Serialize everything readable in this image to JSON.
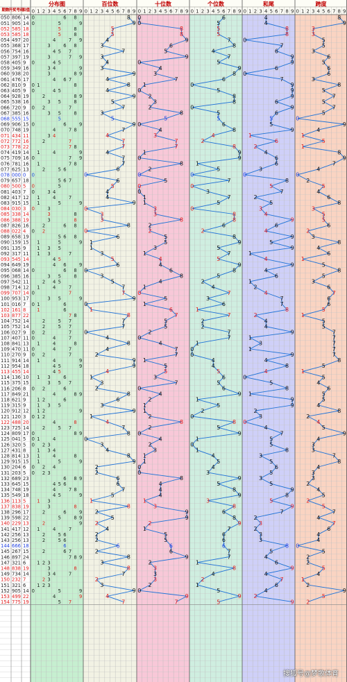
{
  "chart_data": {
    "type": "table",
    "title": "",
    "columns": {
      "issue": "期数",
      "draw": "开奖号码",
      "sum": "和值",
      "groups": [
        {
          "label": "分布图",
          "color": "#c6efd0"
        },
        {
          "label": "百位数",
          "color": "#f2f2e4"
        },
        {
          "label": "十位数",
          "color": "#f8c8d8"
        },
        {
          "label": "个位数",
          "color": "#cfeee0"
        },
        {
          "label": "和尾",
          "color": "#cfd0f8"
        },
        {
          "label": "跨度",
          "color": "#fad4c2"
        }
      ],
      "digits": [
        "0",
        "1",
        "2",
        "3",
        "4",
        "5",
        "6",
        "7",
        "8",
        "9"
      ]
    },
    "series_color": "#1e72d8",
    "rows": [
      {
        "issue": "050",
        "draw": "806",
        "sum": "14"
      },
      {
        "issue": "051",
        "draw": "905",
        "sum": "14"
      },
      {
        "issue": "052",
        "draw": "585",
        "sum": "18"
      },
      {
        "issue": "053",
        "draw": "585",
        "sum": "18"
      },
      {
        "issue": "054",
        "draw": "497",
        "sum": "20"
      },
      {
        "issue": "055",
        "draw": "368",
        "sum": "17"
      },
      {
        "issue": "056",
        "draw": "754",
        "sum": "16"
      },
      {
        "issue": "057",
        "draw": "397",
        "sum": "19"
      },
      {
        "issue": "058",
        "draw": "405",
        "sum": "9"
      },
      {
        "issue": "059",
        "draw": "349",
        "sum": "16"
      },
      {
        "issue": "060",
        "draw": "938",
        "sum": "20"
      },
      {
        "issue": "061",
        "draw": "476",
        "sum": "17"
      },
      {
        "issue": "062",
        "draw": "810",
        "sum": "9"
      },
      {
        "issue": "063",
        "draw": "405",
        "sum": "9"
      },
      {
        "issue": "064",
        "draw": "928",
        "sum": "19"
      },
      {
        "issue": "065",
        "draw": "538",
        "sum": "16"
      },
      {
        "issue": "066",
        "draw": "720",
        "sum": "9"
      },
      {
        "issue": "067",
        "draw": "385",
        "sum": "16"
      },
      {
        "issue": "068",
        "draw": "555",
        "sum": "15"
      },
      {
        "issue": "069",
        "draw": "906",
        "sum": "15"
      },
      {
        "issue": "070",
        "draw": "748",
        "sum": "19"
      },
      {
        "issue": "071",
        "draw": "434",
        "sum": "11"
      },
      {
        "issue": "072",
        "draw": "772",
        "sum": "16"
      },
      {
        "issue": "073",
        "draw": "778",
        "sum": "22"
      },
      {
        "issue": "074",
        "draw": "419",
        "sum": "14"
      },
      {
        "issue": "075",
        "draw": "709",
        "sum": "16"
      },
      {
        "issue": "076",
        "draw": "781",
        "sum": "16"
      },
      {
        "issue": "077",
        "draw": "625",
        "sum": "13"
      },
      {
        "issue": "078",
        "draw": "000",
        "sum": "0"
      },
      {
        "issue": "079",
        "draw": "657",
        "sum": "18"
      },
      {
        "issue": "080",
        "draw": "500",
        "sum": "5"
      },
      {
        "issue": "081",
        "draw": "403",
        "sum": "7"
      },
      {
        "issue": "082",
        "draw": "417",
        "sum": "12"
      },
      {
        "issue": "083",
        "draw": "915",
        "sum": "15"
      },
      {
        "issue": "084",
        "draw": "030",
        "sum": "3"
      },
      {
        "issue": "085",
        "draw": "338",
        "sum": "14"
      },
      {
        "issue": "086",
        "draw": "388",
        "sum": "19"
      },
      {
        "issue": "087",
        "draw": "826",
        "sum": "16"
      },
      {
        "issue": "088",
        "draw": "022",
        "sum": "4"
      },
      {
        "issue": "089",
        "draw": "658",
        "sum": "19"
      },
      {
        "issue": "090",
        "draw": "159",
        "sum": "15"
      },
      {
        "issue": "091",
        "draw": "135",
        "sum": "9"
      },
      {
        "issue": "092",
        "draw": "317",
        "sum": "11"
      },
      {
        "issue": "093",
        "draw": "545",
        "sum": "14"
      },
      {
        "issue": "094",
        "draw": "649",
        "sum": "19"
      },
      {
        "issue": "095",
        "draw": "068",
        "sum": "14"
      },
      {
        "issue": "096",
        "draw": "385",
        "sum": "16"
      },
      {
        "issue": "097",
        "draw": "542",
        "sum": "11"
      },
      {
        "issue": "098",
        "draw": "714",
        "sum": "12"
      },
      {
        "issue": "099",
        "draw": "707",
        "sum": "14"
      },
      {
        "issue": "100",
        "draw": "953",
        "sum": "17"
      },
      {
        "issue": "101",
        "draw": "016",
        "sum": "7"
      },
      {
        "issue": "102",
        "draw": "161",
        "sum": "8"
      },
      {
        "issue": "103",
        "draw": "877",
        "sum": "22"
      },
      {
        "issue": "104",
        "draw": "752",
        "sum": "14"
      },
      {
        "issue": "105",
        "draw": "752",
        "sum": "14"
      },
      {
        "issue": "106",
        "draw": "027",
        "sum": "9"
      },
      {
        "issue": "107",
        "draw": "407",
        "sum": "11"
      },
      {
        "issue": "108",
        "draw": "841",
        "sum": "13"
      },
      {
        "issue": "109",
        "draw": "470",
        "sum": "11"
      },
      {
        "issue": "110",
        "draw": "270",
        "sum": "9"
      },
      {
        "issue": "111",
        "draw": "914",
        "sum": "14"
      },
      {
        "issue": "112",
        "draw": "954",
        "sum": "18"
      },
      {
        "issue": "113",
        "draw": "455",
        "sum": "14"
      },
      {
        "issue": "114",
        "draw": "136",
        "sum": "10"
      },
      {
        "issue": "115",
        "draw": "375",
        "sum": "15"
      },
      {
        "issue": "116",
        "draw": "206",
        "sum": "8"
      },
      {
        "issue": "117",
        "draw": "849",
        "sum": "21"
      },
      {
        "issue": "118",
        "draw": "621",
        "sum": "9"
      },
      {
        "issue": "119",
        "draw": "315",
        "sum": "9"
      },
      {
        "issue": "120",
        "draw": "912",
        "sum": "12"
      },
      {
        "issue": "121",
        "draw": "120",
        "sum": "3"
      },
      {
        "issue": "122",
        "draw": "488",
        "sum": "20"
      },
      {
        "issue": "123",
        "draw": "725",
        "sum": "14"
      },
      {
        "issue": "124",
        "draw": "809",
        "sum": "17"
      },
      {
        "issue": "125",
        "draw": "041",
        "sum": "5"
      },
      {
        "issue": "126",
        "draw": "320",
        "sum": "5"
      },
      {
        "issue": "127",
        "draw": "431",
        "sum": "8"
      },
      {
        "issue": "128",
        "draw": "814",
        "sum": "13"
      },
      {
        "issue": "129",
        "draw": "915",
        "sum": "15"
      },
      {
        "issue": "130",
        "draw": "204",
        "sum": "6"
      },
      {
        "issue": "131",
        "draw": "203",
        "sum": "5"
      },
      {
        "issue": "132",
        "draw": "689",
        "sum": "23"
      },
      {
        "issue": "133",
        "draw": "645",
        "sum": "15"
      },
      {
        "issue": "134",
        "draw": "748",
        "sum": "19"
      },
      {
        "issue": "135",
        "draw": "549",
        "sum": "18"
      },
      {
        "issue": "136",
        "draw": "113",
        "sum": "5"
      },
      {
        "issue": "137",
        "draw": "838",
        "sum": "19"
      },
      {
        "issue": "138",
        "draw": "296",
        "sum": "17"
      },
      {
        "issue": "139",
        "draw": "598",
        "sum": "22"
      },
      {
        "issue": "140",
        "draw": "229",
        "sum": "13"
      },
      {
        "issue": "141",
        "draw": "417",
        "sum": "12"
      },
      {
        "issue": "142",
        "draw": "256",
        "sum": "13"
      },
      {
        "issue": "143",
        "draw": "256",
        "sum": "13"
      },
      {
        "issue": "144",
        "draw": "666",
        "sum": "18"
      },
      {
        "issue": "145",
        "draw": "267",
        "sum": "15"
      },
      {
        "issue": "146",
        "draw": "897",
        "sum": "24"
      },
      {
        "issue": "147",
        "draw": "321",
        "sum": "6"
      },
      {
        "issue": "148",
        "draw": "838",
        "sum": "19"
      },
      {
        "issue": "149",
        "draw": "734",
        "sum": "14"
      },
      {
        "issue": "150",
        "draw": "232",
        "sum": "7"
      },
      {
        "issue": "151",
        "draw": "321",
        "sum": "6"
      },
      {
        "issue": "152",
        "draw": "905",
        "sum": "14"
      },
      {
        "issue": "153",
        "draw": "499",
        "sum": "22"
      },
      {
        "issue": "154",
        "draw": "775",
        "sum": "19"
      }
    ],
    "watermark": "搜狐号@梦歌体育"
  }
}
